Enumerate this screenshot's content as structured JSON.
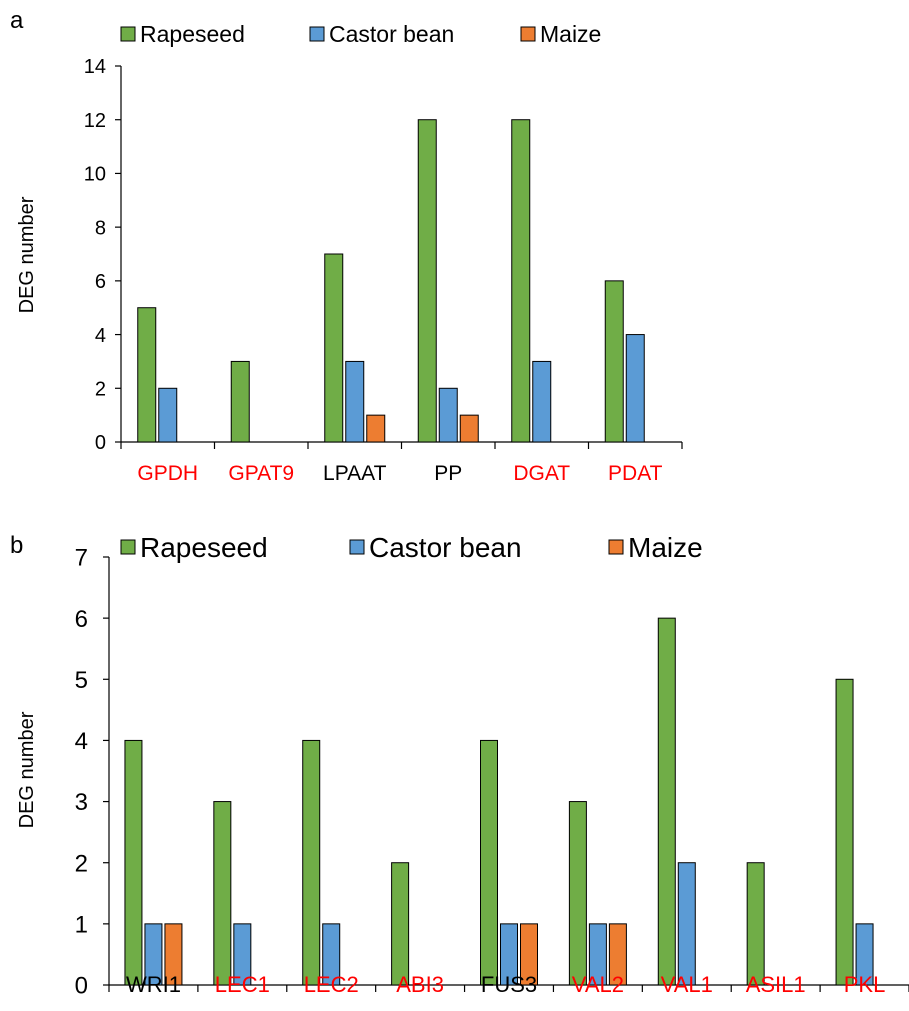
{
  "chart_data": [
    {
      "panel_label": "a",
      "type": "bar",
      "categories": [
        "GPDH",
        "GPAT9",
        "LPAAT",
        "PP",
        "DGAT",
        "PDAT"
      ],
      "category_colors": [
        "#ff0000",
        "#ff0000",
        "#000000",
        "#000000",
        "#ff0000",
        "#ff0000"
      ],
      "series": [
        {
          "name": "Rapeseed",
          "color": "#70ad47",
          "values": [
            5,
            3,
            7,
            12,
            12,
            6
          ]
        },
        {
          "name": "Castor bean",
          "color": "#5b9bd5",
          "values": [
            2,
            0,
            3,
            2,
            3,
            4
          ]
        },
        {
          "name": "Maize",
          "color": "#ed7d31",
          "values": [
            0,
            0,
            1,
            1,
            0,
            0
          ]
        }
      ],
      "ylabel": "DEG number",
      "ylim": [
        0,
        14
      ],
      "yticks": [
        0,
        2,
        4,
        6,
        8,
        10,
        12,
        14
      ],
      "legend": "top"
    },
    {
      "panel_label": "b",
      "type": "bar",
      "categories": [
        "WRI1",
        "LEC1",
        "LEC2",
        "ABI3",
        "FUS3",
        "VAL2",
        "VAL1",
        "ASIL1",
        "PKL"
      ],
      "category_colors": [
        "#000000",
        "#ff0000",
        "#ff0000",
        "#ff0000",
        "#000000",
        "#ff0000",
        "#ff0000",
        "#ff0000",
        "#ff0000"
      ],
      "series": [
        {
          "name": "Rapeseed",
          "color": "#70ad47",
          "values": [
            4,
            3,
            4,
            2,
            4,
            3,
            6,
            2,
            5
          ]
        },
        {
          "name": "Castor bean",
          "color": "#5b9bd5",
          "values": [
            1,
            1,
            1,
            0,
            1,
            1,
            2,
            0,
            1
          ]
        },
        {
          "name": "Maize",
          "color": "#ed7d31",
          "values": [
            1,
            0,
            0,
            0,
            1,
            1,
            0,
            0,
            0
          ]
        }
      ],
      "ylabel": "DEG number",
      "ylim": [
        0,
        7
      ],
      "yticks": [
        0,
        1,
        2,
        3,
        4,
        5,
        6,
        7
      ],
      "legend": "top"
    }
  ]
}
